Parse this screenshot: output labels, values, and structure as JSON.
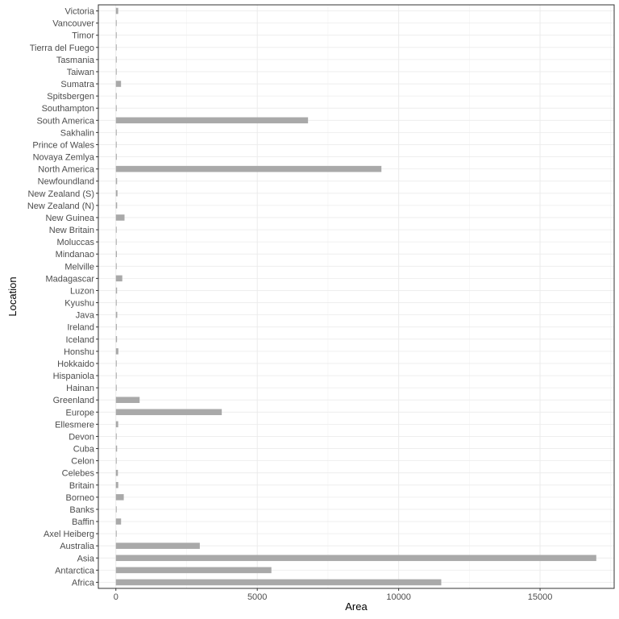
{
  "chart_data": {
    "type": "bar",
    "orientation": "horizontal",
    "xlabel": "Area",
    "ylabel": "Location",
    "xlim": [
      -620,
      17620
    ],
    "x_ticks": [
      0,
      5000,
      10000,
      15000
    ],
    "grid": true,
    "bar_color": "#a9a9a9",
    "categories": [
      "Africa",
      "Antarctica",
      "Asia",
      "Australia",
      "Axel Heiberg",
      "Baffin",
      "Banks",
      "Borneo",
      "Britain",
      "Celebes",
      "Celon",
      "Cuba",
      "Devon",
      "Ellesmere",
      "Europe",
      "Greenland",
      "Hainan",
      "Hispaniola",
      "Hokkaido",
      "Honshu",
      "Iceland",
      "Ireland",
      "Java",
      "Kyushu",
      "Luzon",
      "Madagascar",
      "Melville",
      "Mindanao",
      "Moluccas",
      "New Britain",
      "New Guinea",
      "New Zealand (N)",
      "New Zealand (S)",
      "Newfoundland",
      "North America",
      "Novaya Zemlya",
      "Prince of Wales",
      "Sakhalin",
      "South America",
      "Southampton",
      "Spitsbergen",
      "Sumatra",
      "Taiwan",
      "Tasmania",
      "Tierra del Fuego",
      "Timor",
      "Vancouver",
      "Victoria"
    ],
    "values": [
      11506,
      5500,
      16988,
      2968,
      16,
      184,
      23,
      280,
      84,
      73,
      25,
      43,
      21,
      82,
      3745,
      840,
      13,
      30,
      30,
      89,
      40,
      33,
      49,
      14,
      42,
      227,
      16,
      36,
      29,
      15,
      306,
      44,
      58,
      43,
      9390,
      32,
      13,
      29,
      6795,
      16,
      15,
      183,
      14,
      26,
      19,
      13,
      12,
      82
    ]
  }
}
